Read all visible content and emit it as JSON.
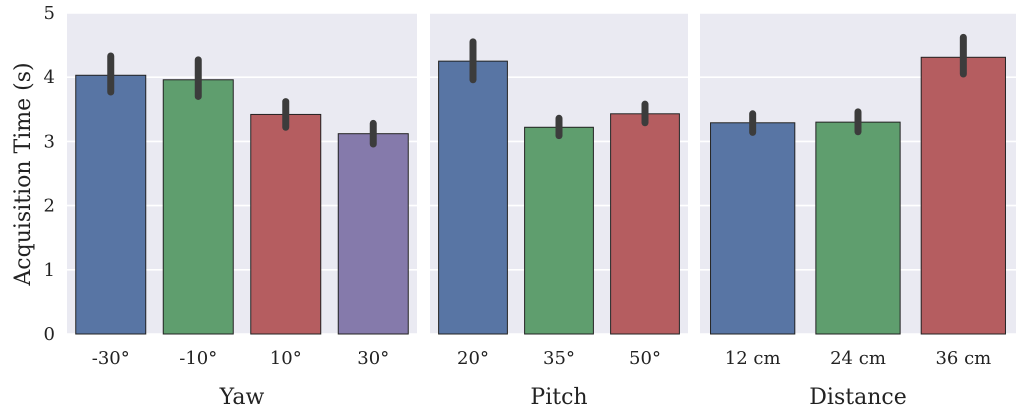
{
  "chart_data": [
    {
      "type": "bar",
      "xlabel": "Yaw",
      "ylabel": "Acquisition Time (s)",
      "ylim": [
        0,
        5
      ],
      "yticks": [
        "0",
        "1",
        "2",
        "3",
        "4",
        "5"
      ],
      "grid": true,
      "categories": [
        "-30°",
        "-10°",
        "10°",
        "30°"
      ],
      "values": [
        4.03,
        3.96,
        3.42,
        3.12
      ],
      "error_low": [
        3.77,
        3.7,
        3.22,
        2.96
      ],
      "error_high": [
        4.33,
        4.27,
        3.62,
        3.28
      ],
      "colors": [
        "#5875a4",
        "#5f9e6e",
        "#b55d60",
        "#857aab"
      ]
    },
    {
      "type": "bar",
      "xlabel": "Pitch",
      "ylim": [
        0,
        5
      ],
      "grid": true,
      "categories": [
        "20°",
        "35°",
        "50°"
      ],
      "values": [
        4.25,
        3.22,
        3.43
      ],
      "error_low": [
        3.96,
        3.09,
        3.29
      ],
      "error_high": [
        4.55,
        3.36,
        3.58
      ],
      "colors": [
        "#5875a4",
        "#5f9e6e",
        "#b55d60"
      ]
    },
    {
      "type": "bar",
      "xlabel": "Distance",
      "ylim": [
        0,
        5
      ],
      "grid": true,
      "categories": [
        "12 cm",
        "24 cm",
        "36 cm"
      ],
      "values": [
        3.29,
        3.3,
        4.31
      ],
      "error_low": [
        3.14,
        3.15,
        4.05
      ],
      "error_high": [
        3.43,
        3.46,
        4.62
      ],
      "colors": [
        "#5875a4",
        "#5f9e6e",
        "#b55d60"
      ]
    }
  ]
}
